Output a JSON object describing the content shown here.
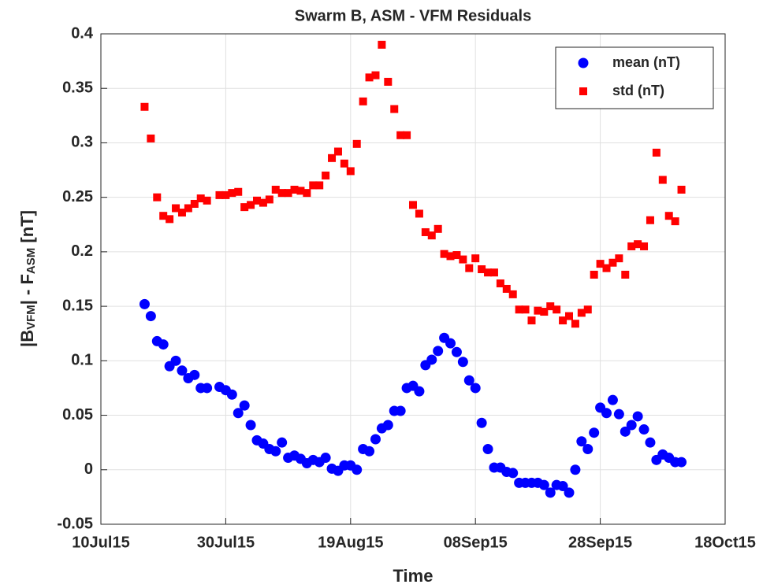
{
  "chart_data": {
    "type": "scatter",
    "title": "Swarm B, ASM - VFM Residuals",
    "x_label": "Time",
    "y_label_parts": [
      "|B",
      "VFM",
      "| - F",
      "ASM",
      " [nT]"
    ],
    "xlim": [
      "2015-07-10",
      "2015-10-18"
    ],
    "xticks": [
      {
        "value": "2015-07-10",
        "label": "10Jul15"
      },
      {
        "value": "2015-07-30",
        "label": "30Jul15"
      },
      {
        "value": "2015-08-19",
        "label": "19Aug15"
      },
      {
        "value": "2015-09-08",
        "label": "08Sep15"
      },
      {
        "value": "2015-09-28",
        "label": "28Sep15"
      },
      {
        "value": "2015-10-18",
        "label": "18Oct15"
      }
    ],
    "ylim": [
      -0.05,
      0.4
    ],
    "yticks": [
      -0.05,
      0,
      0.05,
      0.1,
      0.15,
      0.2,
      0.25,
      0.3,
      0.35,
      0.4
    ],
    "grid": true,
    "legend": "upper right",
    "x": [
      "2015-07-17",
      "2015-07-18",
      "2015-07-19",
      "2015-07-20",
      "2015-07-21",
      "2015-07-22",
      "2015-07-23",
      "2015-07-24",
      "2015-07-25",
      "2015-07-26",
      "2015-07-27",
      "2015-07-29",
      "2015-07-30",
      "2015-07-31",
      "2015-08-01",
      "2015-08-02",
      "2015-08-03",
      "2015-08-04",
      "2015-08-05",
      "2015-08-06",
      "2015-08-07",
      "2015-08-08",
      "2015-08-09",
      "2015-08-10",
      "2015-08-11",
      "2015-08-12",
      "2015-08-13",
      "2015-08-14",
      "2015-08-15",
      "2015-08-16",
      "2015-08-17",
      "2015-08-18",
      "2015-08-19",
      "2015-08-20",
      "2015-08-21",
      "2015-08-22",
      "2015-08-23",
      "2015-08-24",
      "2015-08-25",
      "2015-08-26",
      "2015-08-27",
      "2015-08-28",
      "2015-08-29",
      "2015-08-30",
      "2015-08-31",
      "2015-09-01",
      "2015-09-02",
      "2015-09-03",
      "2015-09-04",
      "2015-09-05",
      "2015-09-06",
      "2015-09-07",
      "2015-09-08",
      "2015-09-09",
      "2015-09-10",
      "2015-09-11",
      "2015-09-12",
      "2015-09-13",
      "2015-09-14",
      "2015-09-15",
      "2015-09-16",
      "2015-09-17",
      "2015-09-18",
      "2015-09-19",
      "2015-09-20",
      "2015-09-21",
      "2015-09-22",
      "2015-09-23",
      "2015-09-24",
      "2015-09-25",
      "2015-09-26",
      "2015-09-27",
      "2015-09-28",
      "2015-09-29",
      "2015-09-30",
      "2015-10-01",
      "2015-10-02",
      "2015-10-03",
      "2015-10-04",
      "2015-10-05",
      "2015-10-06",
      "2015-10-07",
      "2015-10-08",
      "2015-10-09",
      "2015-10-10",
      "2015-10-11"
    ],
    "series": [
      {
        "name": "mean (nT)",
        "color": "#0000ff",
        "marker": "circle",
        "values": [
          0.152,
          0.141,
          0.118,
          0.115,
          0.095,
          0.1,
          0.091,
          0.084,
          0.087,
          0.075,
          0.075,
          0.076,
          0.073,
          0.069,
          0.052,
          0.059,
          0.041,
          0.027,
          0.024,
          0.019,
          0.017,
          0.025,
          0.011,
          0.013,
          0.01,
          0.006,
          0.009,
          0.007,
          0.011,
          0.001,
          -0.001,
          0.004,
          0.004,
          0,
          0.019,
          0.017,
          0.028,
          0.038,
          0.041,
          0.054,
          0.054,
          0.075,
          0.077,
          0.072,
          0.096,
          0.101,
          0.109,
          0.121,
          0.116,
          0.108,
          0.099,
          0.082,
          0.075,
          0.043,
          0.019,
          0.002,
          0.002,
          -0.002,
          -0.003,
          -0.012,
          -0.012,
          -0.012,
          -0.012,
          -0.014,
          -0.021,
          -0.014,
          -0.015,
          -0.021,
          0,
          0.026,
          0.019,
          0.034,
          0.057,
          0.052,
          0.064,
          0.051,
          0.035,
          0.041,
          0.049,
          0.037,
          0.025,
          0.009,
          0.014,
          0.011,
          0.007,
          0.007
        ]
      },
      {
        "name": "std (nT)",
        "color": "#ff0000",
        "marker": "square",
        "values": [
          0.333,
          0.304,
          0.25,
          0.233,
          0.23,
          0.24,
          0.236,
          0.24,
          0.244,
          0.249,
          0.247,
          0.252,
          0.252,
          0.254,
          0.255,
          0.241,
          0.243,
          0.247,
          0.245,
          0.248,
          0.257,
          0.254,
          0.254,
          0.257,
          0.256,
          0.254,
          0.261,
          0.261,
          0.27,
          0.286,
          0.292,
          0.281,
          0.274,
          0.299,
          0.338,
          0.36,
          0.362,
          0.39,
          0.356,
          0.331,
          0.307,
          0.307,
          0.243,
          0.235,
          0.218,
          0.215,
          0.221,
          0.198,
          0.196,
          0.197,
          0.193,
          0.185,
          0.194,
          0.184,
          0.181,
          0.181,
          0.171,
          0.166,
          0.161,
          0.147,
          0.147,
          0.137,
          0.146,
          0.145,
          0.15,
          0.147,
          0.137,
          0.141,
          0.134,
          0.144,
          0.147,
          0.179,
          0.189,
          0.185,
          0.19,
          0.194,
          0.179,
          0.205,
          0.207,
          0.205,
          0.229,
          0.291,
          0.266,
          0.233,
          0.228,
          0.257
        ]
      }
    ]
  }
}
